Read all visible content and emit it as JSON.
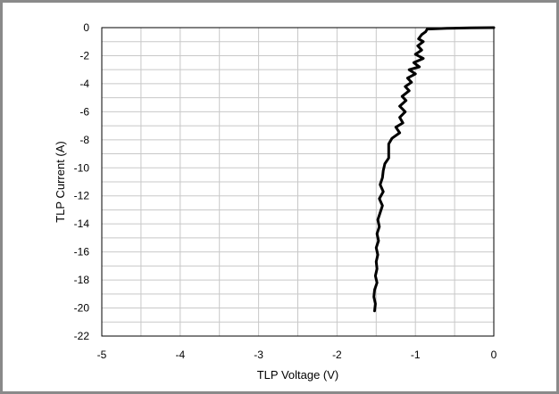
{
  "chart_data": {
    "type": "line",
    "title": "",
    "xlabel": "TLP Voltage (V)",
    "ylabel": "TLP Current (A)",
    "xlim": [
      -5,
      0
    ],
    "ylim": [
      -22,
      0
    ],
    "x_ticks": [
      -5,
      -4,
      -3,
      -2,
      -1,
      0
    ],
    "y_ticks": [
      0,
      -2,
      -4,
      -6,
      -8,
      -10,
      -12,
      -14,
      -16,
      -18,
      -20,
      -22
    ],
    "x_ticks_labels": [
      "-5",
      "-4",
      "-3",
      "-2",
      "-1",
      "0"
    ],
    "y_ticks_labels": [
      "0",
      "-2",
      "-4",
      "-6",
      "-8",
      "-10",
      "-12",
      "-14",
      "-16",
      "-18",
      "-20",
      "-22"
    ],
    "grid": {
      "x_step": 0.5,
      "y_step": 1
    },
    "legend": "none",
    "series": [
      {
        "color": "#000000",
        "points": [
          [
            0,
            0
          ],
          [
            -0.3,
            -0.02
          ],
          [
            -0.6,
            -0.05
          ],
          [
            -0.85,
            -0.1
          ],
          [
            -0.87,
            -0.3
          ],
          [
            -0.92,
            -0.5
          ],
          [
            -0.96,
            -0.8
          ],
          [
            -0.9,
            -1.0
          ],
          [
            -0.97,
            -1.3
          ],
          [
            -0.92,
            -1.6
          ],
          [
            -1.0,
            -1.9
          ],
          [
            -0.9,
            -2.2
          ],
          [
            -1.02,
            -2.5
          ],
          [
            -0.95,
            -2.8
          ],
          [
            -1.08,
            -3.0
          ],
          [
            -1.0,
            -3.3
          ],
          [
            -1.1,
            -3.6
          ],
          [
            -1.05,
            -3.9
          ],
          [
            -1.13,
            -4.2
          ],
          [
            -1.08,
            -4.5
          ],
          [
            -1.17,
            -4.9
          ],
          [
            -1.12,
            -5.2
          ],
          [
            -1.2,
            -5.6
          ],
          [
            -1.13,
            -6.0
          ],
          [
            -1.2,
            -6.4
          ],
          [
            -1.16,
            -6.8
          ],
          [
            -1.25,
            -7.1
          ],
          [
            -1.2,
            -7.5
          ],
          [
            -1.3,
            -7.9
          ],
          [
            -1.34,
            -8.3
          ],
          [
            -1.34,
            -8.8
          ],
          [
            -1.34,
            -9.3
          ],
          [
            -1.39,
            -9.7
          ],
          [
            -1.41,
            -10.2
          ],
          [
            -1.42,
            -10.7
          ],
          [
            -1.45,
            -11.2
          ],
          [
            -1.41,
            -11.7
          ],
          [
            -1.46,
            -12.2
          ],
          [
            -1.42,
            -12.7
          ],
          [
            -1.45,
            -13.2
          ],
          [
            -1.48,
            -13.7
          ],
          [
            -1.46,
            -14.2
          ],
          [
            -1.49,
            -14.7
          ],
          [
            -1.47,
            -15.2
          ],
          [
            -1.5,
            -15.7
          ],
          [
            -1.48,
            -16.2
          ],
          [
            -1.5,
            -16.7
          ],
          [
            -1.49,
            -17.2
          ],
          [
            -1.51,
            -17.7
          ],
          [
            -1.49,
            -18.2
          ],
          [
            -1.52,
            -18.7
          ],
          [
            -1.53,
            -19.2
          ],
          [
            -1.51,
            -19.7
          ],
          [
            -1.52,
            -20.2
          ]
        ]
      }
    ]
  }
}
